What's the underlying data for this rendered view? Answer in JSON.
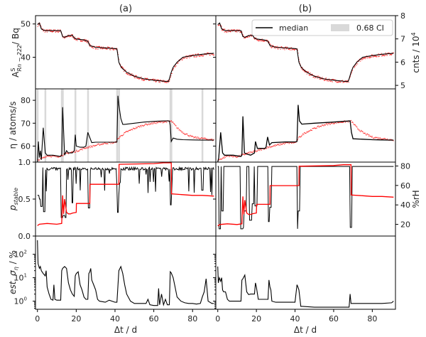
{
  "chart_data": [
    {
      "panel": "a-row1",
      "type": "line",
      "title": "(a)",
      "ylabel_main": "A",
      "ylabel_sup": "S",
      "ylabel_sub": "Rn − 222",
      "ylabel_unit": "/ Bq",
      "yticks": [
        "40",
        "50"
      ],
      "ytick_values": [
        40,
        50
      ],
      "ylim": [
        30.5,
        52.5
      ],
      "xlim": [
        -1,
        92
      ],
      "series": [
        {
          "name": "median",
          "color": "#000000",
          "x": [
            0,
            1,
            2,
            3,
            4,
            5,
            8,
            12,
            13,
            14,
            16,
            18,
            19,
            20,
            24,
            26,
            27,
            30,
            35,
            40,
            41,
            42,
            43,
            44,
            46,
            50,
            55,
            60,
            65,
            67.5,
            68,
            69,
            70,
            72,
            75,
            80,
            85,
            91
          ],
          "y": [
            49.8,
            50.3,
            48.5,
            48.2,
            48.0,
            48.0,
            48.0,
            48.0,
            46.2,
            46.0,
            46.5,
            46.6,
            45.8,
            45.5,
            45.2,
            44.8,
            43.5,
            43.0,
            42.8,
            42.6,
            42.5,
            38.5,
            37.2,
            36.5,
            35.5,
            34.3,
            33.5,
            33.1,
            32.8,
            32.7,
            33.5,
            35.5,
            37.0,
            38.5,
            40.0,
            40.5,
            40.9,
            41.2
          ]
        },
        {
          "name": "data",
          "color": "#ff0000",
          "style": "points"
        }
      ]
    },
    {
      "panel": "b-row1",
      "type": "line",
      "title": "(b)",
      "y2label": "cnts / 10",
      "y2label_sup": "4",
      "y2ticks": [
        "5",
        "6",
        "7",
        "8"
      ],
      "y2tick_values": [
        5,
        6,
        7,
        8
      ],
      "y2lim": [
        4.85,
        8.0
      ],
      "legend": {
        "position": "top-right",
        "entries": [
          "median",
          "0.68 CI"
        ]
      }
    },
    {
      "panel": "a-row2",
      "type": "line",
      "ylabel": "η / atoms/s",
      "yticks": [
        "60",
        "70",
        "80"
      ],
      "ytick_values": [
        60,
        70,
        80
      ],
      "ylim": [
        53,
        85
      ],
      "series": [
        {
          "name": "median",
          "x": [
            0,
            0.5,
            1,
            1.5,
            2,
            3,
            4,
            5,
            8,
            12,
            12.5,
            13,
            14,
            15,
            16,
            18,
            19,
            19.5,
            20,
            22,
            24,
            25,
            26,
            28,
            30,
            35,
            40,
            41,
            41.5,
            42,
            43,
            44,
            45,
            50,
            55,
            60,
            65,
            68,
            68.5,
            69,
            70,
            72,
            75,
            80,
            85,
            91
          ],
          "y": [
            53,
            62,
            55,
            58,
            54,
            68,
            57,
            56,
            56,
            55.5,
            56,
            77,
            56,
            58,
            57,
            57,
            58,
            65,
            60,
            59.5,
            59.5,
            60,
            66,
            61.5,
            61.7,
            61.7,
            61.7,
            61.8,
            82,
            78,
            72,
            69.5,
            69.5,
            70,
            70.5,
            70.8,
            71,
            71,
            69,
            62,
            63.5,
            63,
            62.8,
            62.7,
            62.6,
            62.6
          ]
        },
        {
          "name": "data",
          "x": [
            0,
            5,
            10,
            15,
            20,
            25,
            30,
            35,
            40,
            42,
            45,
            50,
            55,
            60,
            65,
            69,
            72,
            75,
            80,
            85,
            91
          ],
          "y": [
            54,
            56,
            55.5,
            57,
            58,
            59.5,
            60.5,
            61.5,
            61.7,
            64,
            66,
            68,
            69.5,
            70.3,
            70.8,
            71,
            68,
            66,
            64,
            63.5,
            62.8
          ]
        }
      ]
    },
    {
      "panel": "a-row3",
      "type": "line",
      "ylabel": "p",
      "ylabel_sub": "stable",
      "yticks": [
        "0.0",
        "0.5",
        "1.0"
      ],
      "ytick_values": [
        0,
        0.5,
        1.0
      ],
      "ylim": [
        0,
        1.0
      ],
      "series": [
        {
          "name": "p_stable",
          "color": "#000000"
        },
        {
          "name": "rH",
          "color": "#ff0000",
          "x": [
            0,
            1,
            5,
            10,
            12.5,
            13,
            13.5,
            14,
            15,
            16,
            17,
            18,
            20,
            20.1,
            26,
            27,
            27.1,
            41.5,
            42,
            42.1,
            60,
            65,
            68.5,
            69,
            69.1,
            75,
            80,
            85,
            91
          ],
          "y": [
            0.14,
            0.16,
            0.17,
            0.16,
            0.17,
            0.55,
            0.3,
            0.5,
            0.32,
            0.3,
            0.3,
            0.31,
            0.32,
            0.44,
            0.44,
            0.44,
            0.7,
            0.7,
            0.7,
            0.97,
            0.98,
            0.99,
            0.99,
            0.99,
            0.57,
            0.56,
            0.55,
            0.55,
            0.54
          ]
        }
      ]
    },
    {
      "panel": "b-row3",
      "type": "line",
      "y2label": "%rH",
      "y2ticks": [
        "20",
        "40",
        "60",
        "80"
      ],
      "y2tick_values": [
        20,
        40,
        60,
        80
      ],
      "y2lim": [
        8,
        84
      ]
    },
    {
      "panel": "a-row4",
      "type": "line",
      "ylabel": "est. σ",
      "ylabel_sub": "η",
      "ylabel_unit": "/ %",
      "yscale": "log",
      "yticks": [
        "10",
        "10",
        "10"
      ],
      "ytick_exponents": [
        "0",
        "1",
        "2"
      ],
      "ytick_values": [
        1,
        10,
        100
      ],
      "ylim": [
        0.45,
        600
      ],
      "xlabel": "Δt / d",
      "xticks": [
        "0",
        "20",
        "40",
        "60",
        "80"
      ],
      "xtick_values": [
        0,
        20,
        40,
        60,
        80
      ],
      "series": [
        {
          "name": "est_sigma_a",
          "x": [
            0,
            0.3,
            1,
            1.5,
            2,
            3,
            4,
            4.5,
            5,
            6,
            7,
            8,
            8.5,
            9,
            10,
            11,
            12,
            12.5,
            13,
            14,
            15,
            16,
            17,
            18,
            19,
            19.5,
            20,
            21,
            22,
            23,
            24,
            25,
            26,
            26.5,
            27,
            27.5,
            28,
            29,
            30,
            31,
            32,
            35,
            37,
            40,
            41,
            42,
            43,
            44,
            45,
            46,
            48,
            50,
            55,
            56,
            57,
            58,
            60,
            62,
            62.5,
            63,
            64,
            65,
            66,
            67,
            68,
            68.5,
            69,
            70,
            71,
            72,
            74,
            76,
            78,
            80,
            82,
            84,
            85,
            86,
            87,
            88,
            90,
            91
          ],
          "y": [
            400,
            40,
            25,
            30,
            20,
            15,
            12,
            20,
            4,
            2,
            1.2,
            1.1,
            5,
            1.2,
            1.1,
            1.1,
            1.1,
            20,
            25,
            30,
            25,
            6,
            3,
            2,
            1.6,
            12,
            15,
            18,
            5,
            3,
            1.5,
            1.2,
            1.2,
            15,
            18,
            25,
            8,
            5,
            3,
            1.2,
            1.0,
            0.9,
            1.1,
            0.9,
            0.9,
            20,
            30,
            15,
            5,
            2,
            1,
            0.8,
            0.8,
            0.8,
            1.2,
            0.7,
            0.65,
            0.65,
            3.5,
            0.7,
            2.0,
            0.7,
            1.2,
            0.7,
            0.7,
            18,
            16,
            10,
            4,
            1.5,
            1.0,
            0.85,
            0.8,
            0.8,
            0.75,
            0.8,
            1.5,
            2.5,
            9,
            1,
            0.8,
            0.8
          ]
        }
      ]
    },
    {
      "panel": "b-row4",
      "type": "line",
      "xlabel": "Δt / d",
      "xticks": [
        "0",
        "20",
        "40",
        "60",
        "80"
      ],
      "xtick_values": [
        0,
        20,
        40,
        60,
        80
      ],
      "series": [
        {
          "name": "est_sigma_b",
          "x": [
            0,
            0.3,
            0.8,
            1.5,
            2,
            2.5,
            3,
            4,
            5,
            6,
            8,
            10,
            12,
            12.5,
            13,
            14,
            15,
            16,
            17,
            18,
            19,
            19.5,
            20,
            21,
            24,
            26,
            26.5,
            27,
            27.5,
            28,
            30,
            35,
            40,
            41,
            41.5,
            42,
            43,
            44,
            50,
            60,
            65,
            68,
            68.5,
            69,
            70,
            75,
            80,
            85,
            90,
            91
          ],
          "y": [
            30,
            6,
            10,
            7,
            10,
            3,
            2.5,
            2.5,
            1.2,
            1.0,
            1.0,
            1.0,
            1.0,
            8,
            9,
            13,
            2.5,
            1.9,
            2,
            2,
            2,
            6,
            4,
            1.2,
            1.2,
            1.2,
            8,
            4,
            3,
            1.0,
            0.9,
            0.9,
            0.9,
            5,
            4,
            3,
            0.6,
            0.6,
            0.55,
            0.55,
            0.55,
            0.55,
            2,
            0.8,
            0.8,
            0.8,
            0.8,
            0.8,
            0.85,
            1.0
          ]
        }
      ]
    }
  ],
  "legend": {
    "median_label": "median",
    "ci_label": "0.68 CI"
  },
  "titles": {
    "a": "(a)",
    "b": "(b)"
  },
  "labels": {
    "row1_left": "A",
    "row1_left_sup": "S",
    "row1_left_sub": "Rn − 222",
    "row1_left_unit": "/ Bq",
    "row1_right": "cnts / 10",
    "row1_right_sup": "4",
    "row2_left": "η / atoms/s",
    "row3_left": "p",
    "row3_left_sub": "stable",
    "row3_right": "%rH",
    "row4_left": "est. σ",
    "row4_left_sub": "η",
    "row4_left_unit": " / %",
    "xlabel": "Δt / d"
  },
  "colors": {
    "median": "#000000",
    "data": "#ff0000",
    "ci": "#d3d3d3",
    "axis": "#000000"
  }
}
